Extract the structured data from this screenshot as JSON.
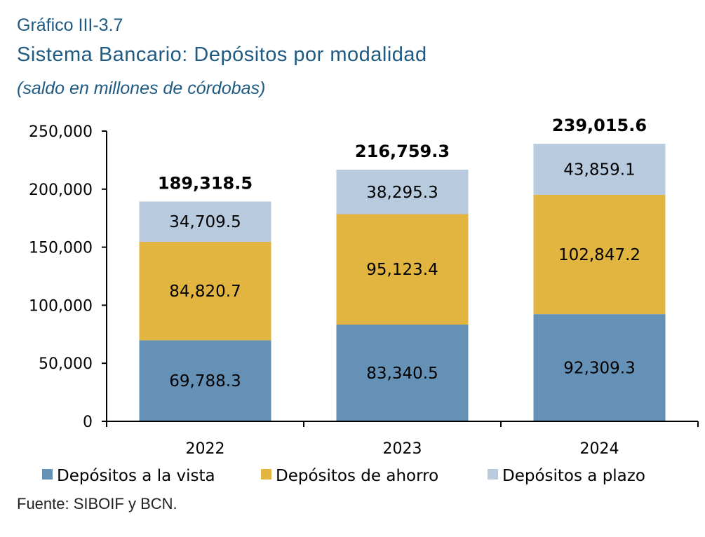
{
  "figure": {
    "label": "Gráfico III-3.7",
    "title": "Sistema Bancario: Depósitos por modalidad",
    "subtitle": "(saldo en millones de córdobas)",
    "source": "Fuente: SIBOIF y BCN."
  },
  "chart_data": {
    "type": "bar",
    "stacked": true,
    "categories": [
      "2022",
      "2023",
      "2024"
    ],
    "series": [
      {
        "name": "Depósitos a la vista",
        "values": [
          69788.3,
          83340.5,
          92309.3
        ],
        "labels": [
          "69,788.3",
          "83,340.5",
          "92,309.3"
        ],
        "color": "#6691B7"
      },
      {
        "name": "Depósitos de ahorro",
        "values": [
          84820.7,
          95123.4,
          102847.2
        ],
        "labels": [
          "84,820.7",
          "95,123.4",
          "102,847.2"
        ],
        "color": "#E2B440"
      },
      {
        "name": "Depósitos a plazo",
        "values": [
          34709.5,
          38295.3,
          43859.1
        ],
        "labels": [
          "34,709.5",
          "38,295.3",
          "43,859.1"
        ],
        "color": "#B7CADE"
      }
    ],
    "totals": [
      189318.5,
      216759.3,
      239015.6
    ],
    "total_labels": [
      "189,318.5",
      "216,759.3",
      "239,015.6"
    ],
    "ylim": [
      0,
      250000
    ],
    "yticks": [
      0,
      50000,
      100000,
      150000,
      200000,
      250000
    ],
    "ytick_labels": [
      "0",
      "50,000",
      "100,000",
      "150,000",
      "200,000",
      "250,000"
    ],
    "grid": false,
    "legend_position": "bottom"
  }
}
